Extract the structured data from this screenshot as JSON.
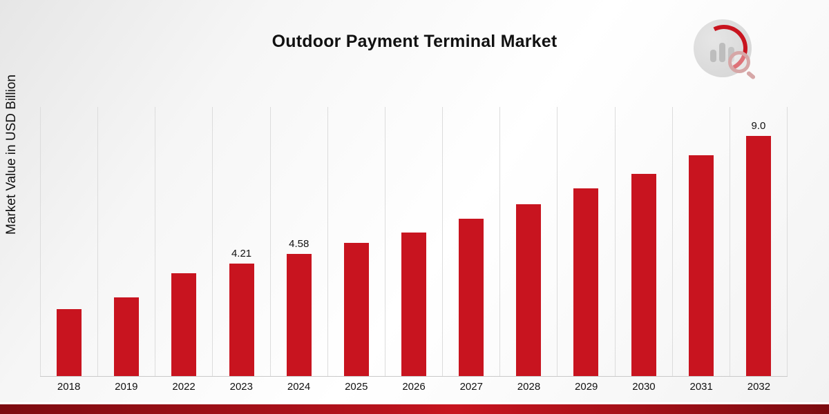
{
  "title": "Outdoor Payment Terminal Market",
  "y_axis_label": "Market Value in USD Billion",
  "chart_data": {
    "type": "bar",
    "title": "Outdoor Payment Terminal Market",
    "xlabel": "",
    "ylabel": "Market Value in USD Billion",
    "categories": [
      "2018",
      "2019",
      "2022",
      "2023",
      "2024",
      "2025",
      "2026",
      "2027",
      "2028",
      "2029",
      "2030",
      "2031",
      "2032"
    ],
    "values": [
      2.5,
      2.95,
      3.85,
      4.21,
      4.58,
      5.0,
      5.4,
      5.9,
      6.45,
      7.05,
      7.6,
      8.3,
      9.0
    ],
    "value_labels": [
      "",
      "",
      "",
      "4.21",
      "4.58",
      "",
      "",
      "",
      "",
      "",
      "",
      "",
      "9.0"
    ],
    "ylim": [
      0,
      10.1
    ],
    "bar_color": "#c8141f",
    "grid": "vertical",
    "legend": "none"
  },
  "logo": {
    "name": "market-research-logo"
  }
}
